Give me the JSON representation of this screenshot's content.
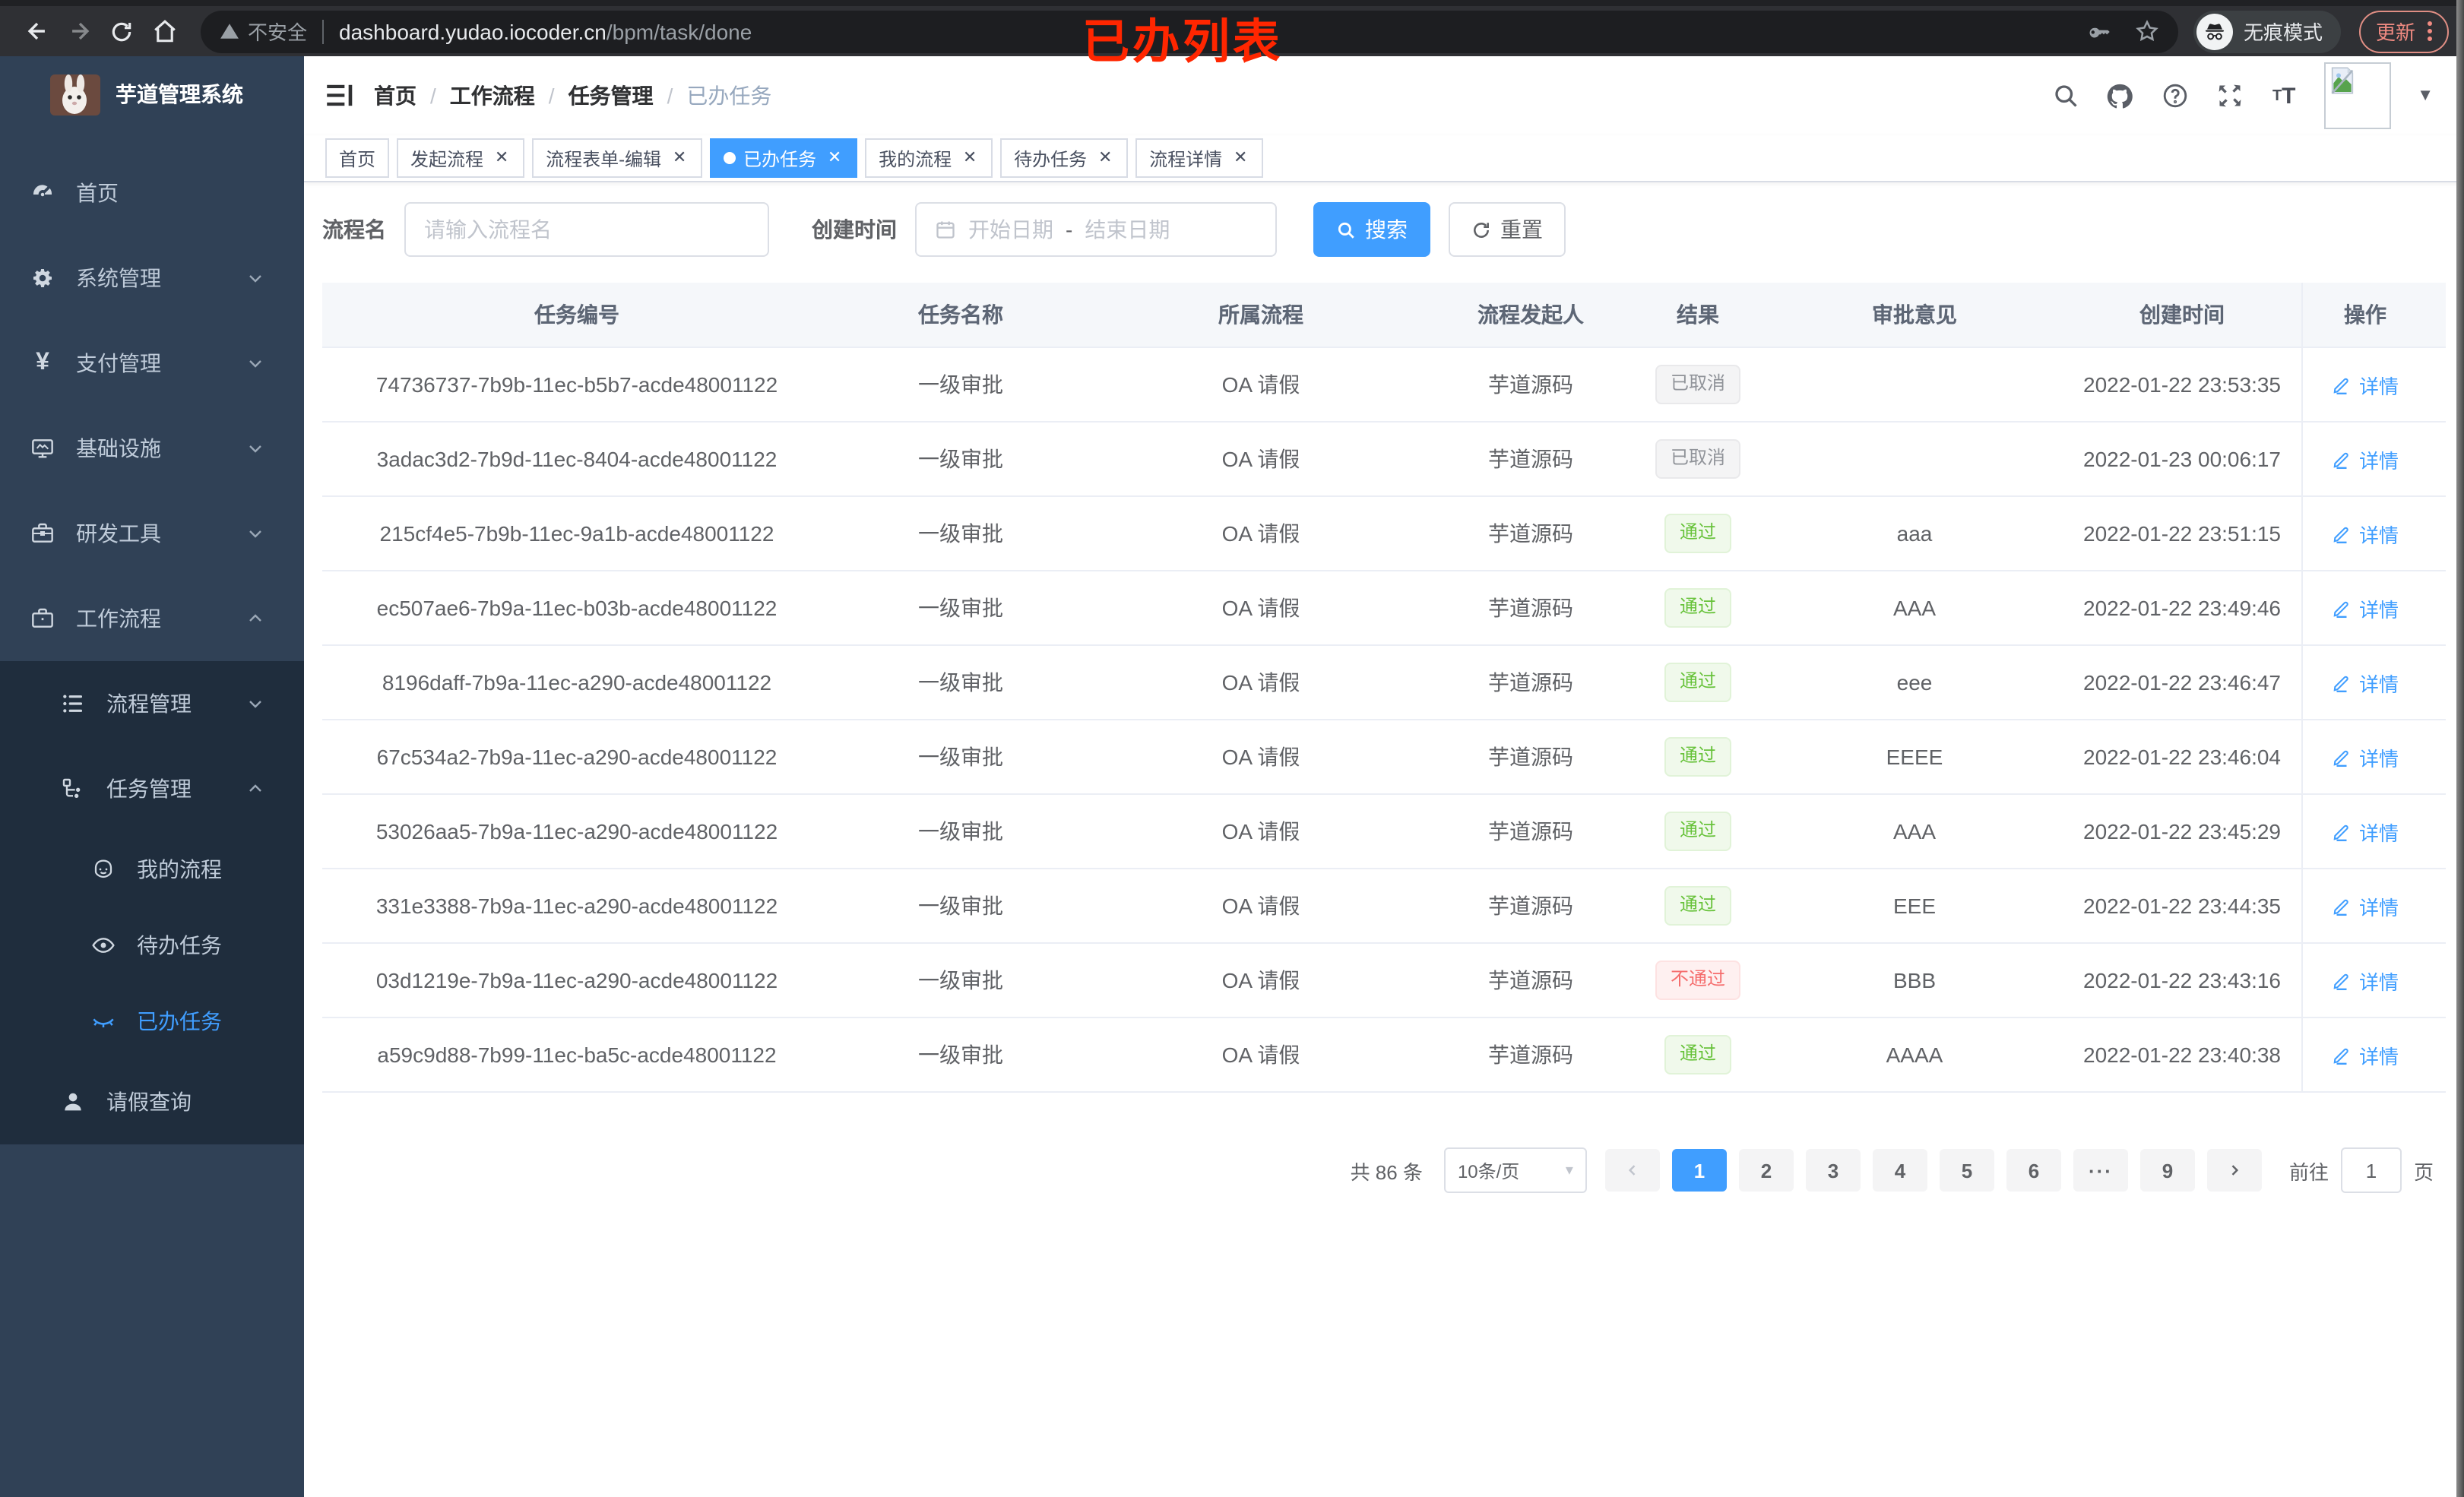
{
  "colors": {
    "accent": "#409eff",
    "success": "#67c23a",
    "danger": "#f56c6c",
    "info": "#909399",
    "annotation": "#ff2600",
    "sidebar_bg": "#304156",
    "submenu_bg": "#1f2d3d"
  },
  "browser": {
    "insecure_label": "不安全",
    "url_domain": "dashboard.yudao.iocoder.cn",
    "url_path": "/bpm/task/done",
    "incognito_label": "无痕模式",
    "update_label": "更新"
  },
  "annotation": {
    "text": "已办列表"
  },
  "sidebar": {
    "title": "芋道管理系统",
    "menu": [
      {
        "label": "首页",
        "icon": "dashboard-icon",
        "level": 1,
        "chevron": "",
        "grouped": false,
        "active": false
      },
      {
        "label": "系统管理",
        "icon": "gear-icon",
        "level": 1,
        "chevron": "down",
        "grouped": false,
        "active": false
      },
      {
        "label": "支付管理",
        "icon": "yen-icon",
        "level": 1,
        "chevron": "down",
        "grouped": false,
        "active": false
      },
      {
        "label": "基础设施",
        "icon": "monitor-icon",
        "level": 1,
        "chevron": "down",
        "grouped": false,
        "active": false
      },
      {
        "label": "研发工具",
        "icon": "toolbox-icon",
        "level": 1,
        "chevron": "down",
        "grouped": false,
        "active": false
      },
      {
        "label": "工作流程",
        "icon": "workflow-icon",
        "level": 1,
        "chevron": "up",
        "grouped": false,
        "active": false
      },
      {
        "label": "流程管理",
        "icon": "process-list-icon",
        "level": 2,
        "chevron": "down",
        "grouped": true,
        "active": false
      },
      {
        "label": "任务管理",
        "icon": "task-tree-icon",
        "level": 2,
        "chevron": "up",
        "grouped": true,
        "active": false
      },
      {
        "label": "我的流程",
        "icon": "my-process-icon",
        "level": 3,
        "chevron": "",
        "grouped": true,
        "active": false
      },
      {
        "label": "待办任务",
        "icon": "eye-icon",
        "level": 3,
        "chevron": "",
        "grouped": true,
        "active": false
      },
      {
        "label": "已办任务",
        "icon": "eye-closed-icon",
        "level": 3,
        "chevron": "",
        "grouped": true,
        "active": true
      },
      {
        "label": "请假查询",
        "icon": "user-icon",
        "level": 2,
        "chevron": "",
        "grouped": true,
        "active": false
      }
    ]
  },
  "header": {
    "breadcrumb": [
      "首页",
      "工作流程",
      "任务管理",
      "已办任务"
    ]
  },
  "tabs": [
    {
      "label": "首页",
      "active": false,
      "closable": false
    },
    {
      "label": "发起流程",
      "active": false,
      "closable": true
    },
    {
      "label": "流程表单-编辑",
      "active": false,
      "closable": true
    },
    {
      "label": "已办任务",
      "active": true,
      "closable": true
    },
    {
      "label": "我的流程",
      "active": false,
      "closable": true
    },
    {
      "label": "待办任务",
      "active": false,
      "closable": true
    },
    {
      "label": "流程详情",
      "active": false,
      "closable": true
    }
  ],
  "search": {
    "name_label": "流程名",
    "name_placeholder": "请输入流程名",
    "date_label": "创建时间",
    "date_start_placeholder": "开始日期",
    "date_separator": "-",
    "date_end_placeholder": "结束日期",
    "search_label": "搜索",
    "reset_label": "重置"
  },
  "table": {
    "columns": [
      "任务编号",
      "任务名称",
      "所属流程",
      "流程发起人",
      "结果",
      "审批意见",
      "创建时间",
      "操作"
    ],
    "action_label": "详情",
    "rows": [
      {
        "id": "74736737-7b9b-11ec-b5b7-acde48001122",
        "name": "一级审批",
        "process": "OA 请假",
        "starter": "芋道源码",
        "result": "已取消",
        "result_type": "info",
        "comment": "",
        "time": "2022-01-22 23:53:35"
      },
      {
        "id": "3adac3d2-7b9d-11ec-8404-acde48001122",
        "name": "一级审批",
        "process": "OA 请假",
        "starter": "芋道源码",
        "result": "已取消",
        "result_type": "info",
        "comment": "",
        "time": "2022-01-23 00:06:17"
      },
      {
        "id": "215cf4e5-7b9b-11ec-9a1b-acde48001122",
        "name": "一级审批",
        "process": "OA 请假",
        "starter": "芋道源码",
        "result": "通过",
        "result_type": "success",
        "comment": "aaa",
        "time": "2022-01-22 23:51:15"
      },
      {
        "id": "ec507ae6-7b9a-11ec-b03b-acde48001122",
        "name": "一级审批",
        "process": "OA 请假",
        "starter": "芋道源码",
        "result": "通过",
        "result_type": "success",
        "comment": "AAA",
        "time": "2022-01-22 23:49:46"
      },
      {
        "id": "8196daff-7b9a-11ec-a290-acde48001122",
        "name": "一级审批",
        "process": "OA 请假",
        "starter": "芋道源码",
        "result": "通过",
        "result_type": "success",
        "comment": "eee",
        "time": "2022-01-22 23:46:47"
      },
      {
        "id": "67c534a2-7b9a-11ec-a290-acde48001122",
        "name": "一级审批",
        "process": "OA 请假",
        "starter": "芋道源码",
        "result": "通过",
        "result_type": "success",
        "comment": "EEEE",
        "time": "2022-01-22 23:46:04"
      },
      {
        "id": "53026aa5-7b9a-11ec-a290-acde48001122",
        "name": "一级审批",
        "process": "OA 请假",
        "starter": "芋道源码",
        "result": "通过",
        "result_type": "success",
        "comment": "AAA",
        "time": "2022-01-22 23:45:29"
      },
      {
        "id": "331e3388-7b9a-11ec-a290-acde48001122",
        "name": "一级审批",
        "process": "OA 请假",
        "starter": "芋道源码",
        "result": "通过",
        "result_type": "success",
        "comment": "EEE",
        "time": "2022-01-22 23:44:35"
      },
      {
        "id": "03d1219e-7b9a-11ec-a290-acde48001122",
        "name": "一级审批",
        "process": "OA 请假",
        "starter": "芋道源码",
        "result": "不通过",
        "result_type": "danger",
        "comment": "BBB",
        "time": "2022-01-22 23:43:16"
      },
      {
        "id": "a59c9d88-7b99-11ec-ba5c-acde48001122",
        "name": "一级审批",
        "process": "OA 请假",
        "starter": "芋道源码",
        "result": "通过",
        "result_type": "success",
        "comment": "AAAA",
        "time": "2022-01-22 23:40:38"
      }
    ]
  },
  "pagination": {
    "total_label": "共 86 条",
    "page_size": "10条/页",
    "current": "1",
    "pages": [
      "1",
      "2",
      "3",
      "4",
      "5",
      "6",
      "···",
      "9"
    ],
    "goto_label": "前往",
    "goto_value": "1",
    "page_unit": "页"
  }
}
